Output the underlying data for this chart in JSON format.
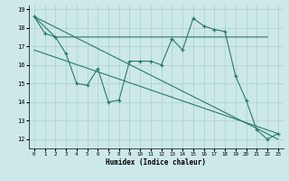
{
  "title": "",
  "xlabel": "Humidex (Indice chaleur)",
  "bg_color": "#cce8e8",
  "grid_color": "#aacfcf",
  "line_color": "#2a7a6a",
  "xlim": [
    -0.5,
    23.5
  ],
  "ylim": [
    11.5,
    19.2
  ],
  "xticks": [
    0,
    1,
    2,
    3,
    4,
    5,
    6,
    7,
    8,
    9,
    10,
    11,
    12,
    13,
    14,
    15,
    16,
    17,
    18,
    19,
    20,
    21,
    22,
    23
  ],
  "yticks": [
    12,
    13,
    14,
    15,
    16,
    17,
    18,
    19
  ],
  "series_zigzag": {
    "x": [
      0,
      1,
      2,
      3,
      4,
      5,
      6,
      7,
      8,
      9,
      10,
      11,
      12,
      13,
      14,
      15,
      16,
      17,
      18,
      19,
      20,
      21,
      22,
      23
    ],
    "y": [
      18.6,
      17.7,
      17.5,
      16.6,
      15.0,
      14.9,
      15.8,
      14.0,
      14.1,
      16.2,
      16.2,
      16.2,
      16.0,
      17.4,
      16.8,
      18.5,
      18.1,
      17.9,
      17.8,
      15.4,
      14.1,
      12.5,
      12.0,
      12.3
    ]
  },
  "series_flat": {
    "x": [
      0,
      2,
      22
    ],
    "y": [
      18.6,
      17.5,
      17.5
    ]
  },
  "series_diag1": {
    "x": [
      0,
      23
    ],
    "y": [
      18.6,
      12.0
    ]
  },
  "series_diag2": {
    "x": [
      0,
      23
    ],
    "y": [
      16.8,
      12.3
    ]
  }
}
